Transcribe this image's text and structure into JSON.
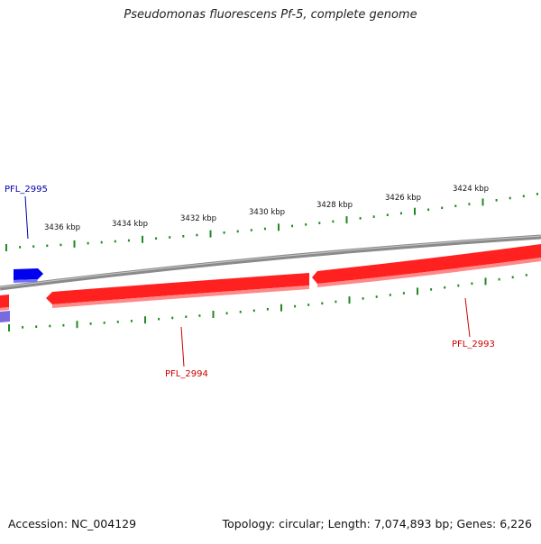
{
  "title": "Pseudomonas fluorescens Pf-5, complete genome",
  "footer": {
    "accession": "Accession: NC_004129",
    "summary": "Topology: circular; Length: 7,074,893 bp; Genes: 6,226"
  },
  "colors": {
    "backbone": "#8a8a8a",
    "reverse_strand": "#ff2020",
    "forward_strand": "#0000ee",
    "forward_faded": "#7a6ae0",
    "ticks": "#228822",
    "label_reverse": "#cc0000",
    "label_forward": "#0000aa"
  },
  "scale_labels": [
    "3424 kbp",
    "3426 kbp",
    "3428 kbp",
    "3430 kbp",
    "3432 kbp",
    "3434 kbp",
    "3436 kbp"
  ],
  "genes": [
    {
      "id": "PFL_2993",
      "strand": "reverse"
    },
    {
      "id": "PFL_2994",
      "strand": "reverse"
    },
    {
      "id": "PFL_2995",
      "strand": "forward"
    }
  ]
}
